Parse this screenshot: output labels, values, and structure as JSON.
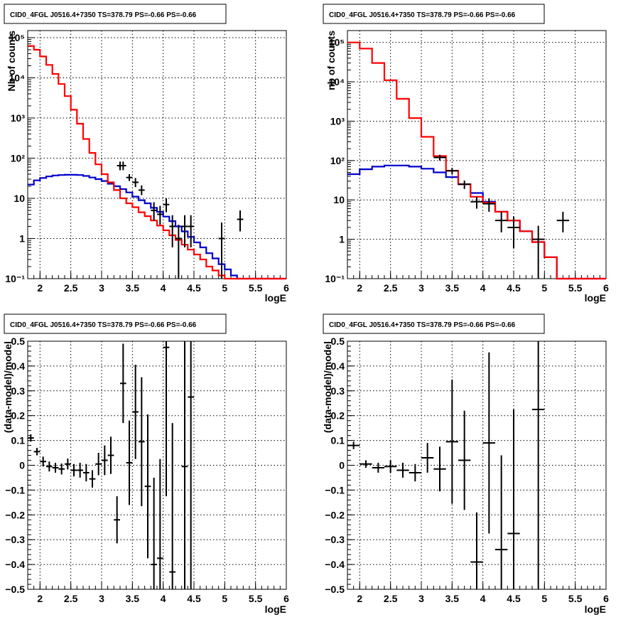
{
  "chart_data": [
    {
      "type": "line",
      "title": "CID0_4FGL J0516.4+7350 TS=378.79 PS=-0.66 PS=-0.66",
      "xlabel": "logE",
      "ylabel": "Nb of counts",
      "xlim": [
        1.8,
        6
      ],
      "ylim": [
        0.1,
        150000
      ],
      "yscale": "log",
      "grid": true,
      "xticks": [
        "2",
        "2.5",
        "3",
        "3.5",
        "4",
        "4.5",
        "5",
        "5.5",
        "6"
      ],
      "yticks": [
        "10⁻¹",
        "1",
        "10",
        "10²",
        "10³",
        "10⁴",
        "10⁵"
      ],
      "colors": {
        "total": "#ff0000",
        "model": "#0000cc",
        "data": "#000000"
      },
      "series": [
        {
          "role": "total",
          "bin_width": 0.1,
          "x_start": 1.8,
          "values": [
            62000,
            50000,
            34000,
            21000,
            12500,
            7000,
            3500,
            1600,
            720,
            300,
            135,
            70,
            40,
            25,
            16,
            10,
            7.5,
            6,
            4.5,
            3.6,
            2.8,
            2.1,
            1.6,
            1.2,
            0.92,
            0.7,
            0.53,
            0.4,
            0.3,
            0.2,
            0.16,
            0.12,
            0.1,
            0.1,
            0.1,
            0.1,
            0.1,
            0.1,
            0.1,
            0.1,
            0.1,
            0.1
          ]
        },
        {
          "role": "model",
          "bin_width": 0.1,
          "x_start": 1.8,
          "values": [
            22,
            28,
            32,
            35,
            37,
            38,
            38.5,
            38.5,
            38,
            36,
            33,
            30,
            27,
            23,
            20,
            17,
            14,
            11,
            9,
            7.5,
            5.8,
            4.6,
            3.5,
            2.7,
            2,
            1.5,
            1.1,
            0.8,
            0.6,
            0.43,
            0.32,
            0.23,
            0.17,
            0.12,
            0.1,
            0.1,
            0.1,
            0.1,
            0.1,
            0.1,
            0.1,
            0.1
          ]
        },
        {
          "role": "data",
          "points": [
            {
              "x": 3.3,
              "y": 65,
              "lo": 50,
              "hi": 82
            },
            {
              "x": 3.35,
              "y": 65,
              "lo": 50,
              "hi": 82
            },
            {
              "x": 3.45,
              "y": 33,
              "lo": 27,
              "hi": 40
            },
            {
              "x": 3.55,
              "y": 25,
              "lo": 19,
              "hi": 32
            },
            {
              "x": 3.65,
              "y": 16,
              "lo": 12,
              "hi": 21
            },
            {
              "x": 3.85,
              "y": 5,
              "lo": 2.8,
              "hi": 8
            },
            {
              "x": 3.95,
              "y": 4,
              "lo": 2.2,
              "hi": 6.5
            },
            {
              "x": 4.05,
              "y": 7,
              "lo": 4.5,
              "hi": 10
            },
            {
              "x": 4.15,
              "y": 2,
              "lo": 0.6,
              "hi": 3.8
            },
            {
              "x": 4.25,
              "y": 1,
              "lo": 0.1,
              "hi": 2.2
            },
            {
              "x": 4.35,
              "y": 2,
              "lo": 0.6,
              "hi": 3.8
            },
            {
              "x": 4.45,
              "y": 2,
              "lo": 0.6,
              "hi": 3.8
            },
            {
              "x": 4.95,
              "y": 1,
              "lo": 0.1,
              "hi": 2.5
            },
            {
              "x": 5.25,
              "y": 3,
              "lo": 1.5,
              "hi": 5
            }
          ]
        }
      ]
    },
    {
      "type": "line",
      "title": "CID0_4FGL J0516.4+7350 TS=378.79 PS=-0.66 PS=-0.66",
      "xlabel": "logE",
      "ylabel": "nb of counts",
      "xlim": [
        1.8,
        6
      ],
      "ylim": [
        0.1,
        200000
      ],
      "yscale": "log",
      "grid": true,
      "xticks": [
        "2",
        "2.5",
        "3",
        "3.5",
        "4",
        "4.5",
        "5",
        "5.5",
        "6"
      ],
      "yticks": [
        "10⁻¹",
        "1",
        "10",
        "10²",
        "10³",
        "10⁴",
        "10⁵"
      ],
      "colors": {
        "total": "#ff0000",
        "model": "#0000cc",
        "data": "#000000"
      },
      "series": [
        {
          "role": "total",
          "bin_width": 0.2,
          "x_start": 1.8,
          "values": [
            100000,
            70000,
            30000,
            11000,
            3700,
            1200,
            400,
            130,
            55,
            25,
            12,
            8.5,
            5,
            3,
            1.6,
            0.85,
            0.35,
            0.1,
            0.1,
            0.1,
            0.1
          ]
        },
        {
          "role": "model",
          "bin_width": 0.2,
          "x_start": 1.8,
          "values": [
            45,
            60,
            70,
            75,
            75,
            70,
            62,
            50,
            38,
            25,
            15,
            9,
            5,
            3,
            1.6,
            0.85,
            0.35,
            0.1,
            0.1,
            0.1,
            0.1
          ]
        },
        {
          "role": "data",
          "points": [
            {
              "x": 3.3,
              "y": 120,
              "lo": 100,
              "hi": 140
            },
            {
              "x": 3.5,
              "y": 55,
              "lo": 45,
              "hi": 65
            },
            {
              "x": 3.7,
              "y": 25,
              "lo": 19,
              "hi": 31
            },
            {
              "x": 3.9,
              "y": 9,
              "lo": 6,
              "hi": 12
            },
            {
              "x": 4.1,
              "y": 8,
              "lo": 5,
              "hi": 11
            },
            {
              "x": 4.3,
              "y": 3,
              "lo": 1.5,
              "hi": 5
            },
            {
              "x": 4.5,
              "y": 2,
              "lo": 0.6,
              "hi": 3.8
            },
            {
              "x": 4.9,
              "y": 1,
              "lo": 0.1,
              "hi": 2.2
            },
            {
              "x": 5.3,
              "y": 3,
              "lo": 1.5,
              "hi": 5
            }
          ]
        }
      ]
    },
    {
      "type": "scatter",
      "title": "CID0_4FGL J0516.4+7350 TS=378.79 PS=-0.66 PS=-0.66",
      "xlabel": "logE",
      "ylabel": "(data-model)/model",
      "xlim": [
        1.8,
        6
      ],
      "ylim": [
        -0.5,
        0.5
      ],
      "grid": true,
      "xticks": [
        "2",
        "2.5",
        "3",
        "3.5",
        "4",
        "4.5",
        "5",
        "5.5",
        "6"
      ],
      "yticks": [
        "−0.5",
        "−0.4",
        "−0.3",
        "−0.2",
        "−0.1",
        "0",
        "0.1",
        "0.2",
        "0.3",
        "0.4",
        "0.5"
      ],
      "bin_width": 0.1,
      "points": [
        {
          "x": 1.85,
          "y": 0.11,
          "e": 0.015
        },
        {
          "x": 1.95,
          "y": 0.055,
          "e": 0.015
        },
        {
          "x": 2.05,
          "y": 0.015,
          "e": 0.02
        },
        {
          "x": 2.15,
          "y": -0.005,
          "e": 0.02
        },
        {
          "x": 2.25,
          "y": -0.01,
          "e": 0.02
        },
        {
          "x": 2.35,
          "y": -0.015,
          "e": 0.022
        },
        {
          "x": 2.45,
          "y": 0.005,
          "e": 0.022
        },
        {
          "x": 2.55,
          "y": -0.02,
          "e": 0.025
        },
        {
          "x": 2.65,
          "y": -0.02,
          "e": 0.03
        },
        {
          "x": 2.75,
          "y": -0.03,
          "e": 0.035
        },
        {
          "x": 2.85,
          "y": -0.055,
          "e": 0.035
        },
        {
          "x": 2.95,
          "y": 0.005,
          "e": 0.045
        },
        {
          "x": 3.05,
          "y": 0.02,
          "e": 0.06
        },
        {
          "x": 3.15,
          "y": 0.04,
          "e": 0.075
        },
        {
          "x": 3.25,
          "y": -0.22,
          "e": 0.095
        },
        {
          "x": 3.35,
          "y": 0.33,
          "e": 0.16
        },
        {
          "x": 3.45,
          "y": 0.01,
          "e": 0.17
        },
        {
          "x": 3.55,
          "y": 0.215,
          "e": 0.19
        },
        {
          "x": 3.65,
          "y": 0.095,
          "e": 0.26
        },
        {
          "x": 3.75,
          "y": -0.085,
          "e": 0.29
        },
        {
          "x": 3.85,
          "y": -0.4,
          "e": 0.35
        },
        {
          "x": 3.95,
          "y": -0.375,
          "e": 0.4
        },
        {
          "x": 4.05,
          "y": 0.475,
          "e": 0.6
        },
        {
          "x": 4.15,
          "y": -0.43,
          "e": 0.6
        },
        {
          "x": 4.35,
          "y": -0.005,
          "e": 0.75
        },
        {
          "x": 4.45,
          "y": 0.275,
          "e": 0.9
        }
      ]
    },
    {
      "type": "scatter",
      "title": "CID0_4FGL J0516.4+7350 TS=378.79 PS=-0.66 PS=-0.66",
      "xlabel": "logE",
      "ylabel": "(data-model)/model",
      "xlim": [
        1.8,
        6
      ],
      "ylim": [
        -0.5,
        0.5
      ],
      "grid": true,
      "xticks": [
        "2",
        "2.5",
        "3",
        "3.5",
        "4",
        "4.5",
        "5",
        "5.5",
        "6"
      ],
      "yticks": [
        "−0.5",
        "−0.4",
        "−0.3",
        "−0.2",
        "−0.1",
        "0",
        "0.1",
        "0.2",
        "0.3",
        "0.4",
        "0.5"
      ],
      "bin_width": 0.2,
      "points": [
        {
          "x": 1.9,
          "y": 0.08,
          "e": 0.015
        },
        {
          "x": 2.1,
          "y": 0.005,
          "e": 0.015
        },
        {
          "x": 2.3,
          "y": -0.01,
          "e": 0.02
        },
        {
          "x": 2.5,
          "y": -0.005,
          "e": 0.025
        },
        {
          "x": 2.7,
          "y": -0.02,
          "e": 0.03
        },
        {
          "x": 2.9,
          "y": -0.03,
          "e": 0.035
        },
        {
          "x": 3.1,
          "y": 0.03,
          "e": 0.06
        },
        {
          "x": 3.3,
          "y": -0.015,
          "e": 0.09
        },
        {
          "x": 3.5,
          "y": 0.095,
          "e": 0.25
        },
        {
          "x": 3.7,
          "y": 0.02,
          "e": 0.2
        },
        {
          "x": 3.9,
          "y": -0.39,
          "e": 0.2
        },
        {
          "x": 4.1,
          "y": 0.09,
          "e": 0.365
        },
        {
          "x": 4.3,
          "y": -0.34,
          "e": 0.38
        },
        {
          "x": 4.5,
          "y": -0.275,
          "e": 0.5
        },
        {
          "x": 4.9,
          "y": 0.225,
          "e": 0.8
        }
      ]
    }
  ]
}
